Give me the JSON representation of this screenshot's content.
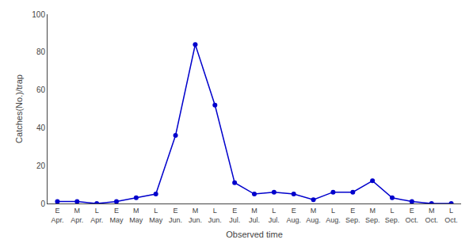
{
  "chart_data": {
    "type": "line",
    "categories": [
      "E\nApr.",
      "M\nApr.",
      "L\nApr.",
      "E\nMay",
      "M\nMay",
      "L\nMay",
      "E\nJun.",
      "M\nJun.",
      "L\nJun.",
      "E\nJul.",
      "M\nJul.",
      "L\nJul.",
      "E\nAug.",
      "M\nAug.",
      "L\nAug.",
      "E\nSep.",
      "M\nSep.",
      "L\nSep.",
      "E\nOct.",
      "M\nOct.",
      "L\nOct."
    ],
    "values": [
      1,
      1,
      0,
      1,
      3,
      5,
      36,
      84,
      52,
      11,
      5,
      6,
      5,
      2,
      6,
      6,
      12,
      3,
      1,
      0,
      0
    ],
    "color": "#0000cc",
    "marker": "circle",
    "xlabel": "Observed time",
    "ylabel": "Catches(No.)/trap",
    "ylim": [
      0,
      100
    ],
    "yticks": [
      0,
      20,
      40,
      60,
      80,
      100
    ],
    "grid": false
  }
}
